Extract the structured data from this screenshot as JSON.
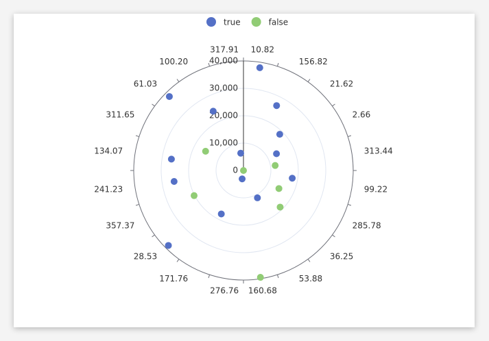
{
  "chart_data": {
    "type": "polar-scatter",
    "categories": [
      "10.82",
      "156.82",
      "21.62",
      "2.66",
      "313.44",
      "99.22",
      "285.78",
      "36.25",
      "53.88",
      "160.68",
      "276.76",
      "171.76",
      "28.53",
      "357.37",
      "241.23",
      "134.07",
      "311.65",
      "61.03",
      "100.20",
      "317.91"
    ],
    "series": [
      {
        "name": "true",
        "color": "#5470c6",
        "values": [
          38000,
          26600,
          18700,
          13500,
          null,
          18000,
          null,
          null,
          11200,
          null,
          3100,
          17800,
          38700,
          null,
          25600,
          26600,
          null,
          38200,
          24300,
          6400
        ]
      },
      {
        "name": "false",
        "color": "#91cc75",
        "values": [
          0,
          null,
          null,
          null,
          11700,
          null,
          14500,
          18900,
          null,
          39500,
          null,
          null,
          null,
          20200,
          null,
          null,
          15500,
          null,
          null,
          null
        ]
      }
    ],
    "rlim": [
      0,
      40000
    ],
    "rticks": [
      0,
      {
        "value": 10000,
        "label": "10,000"
      },
      {
        "value": 20000,
        "label": "20,000"
      },
      {
        "value": 30000,
        "label": "30,000"
      },
      {
        "value": 40000,
        "label": "40,000"
      }
    ],
    "grid": true
  }
}
